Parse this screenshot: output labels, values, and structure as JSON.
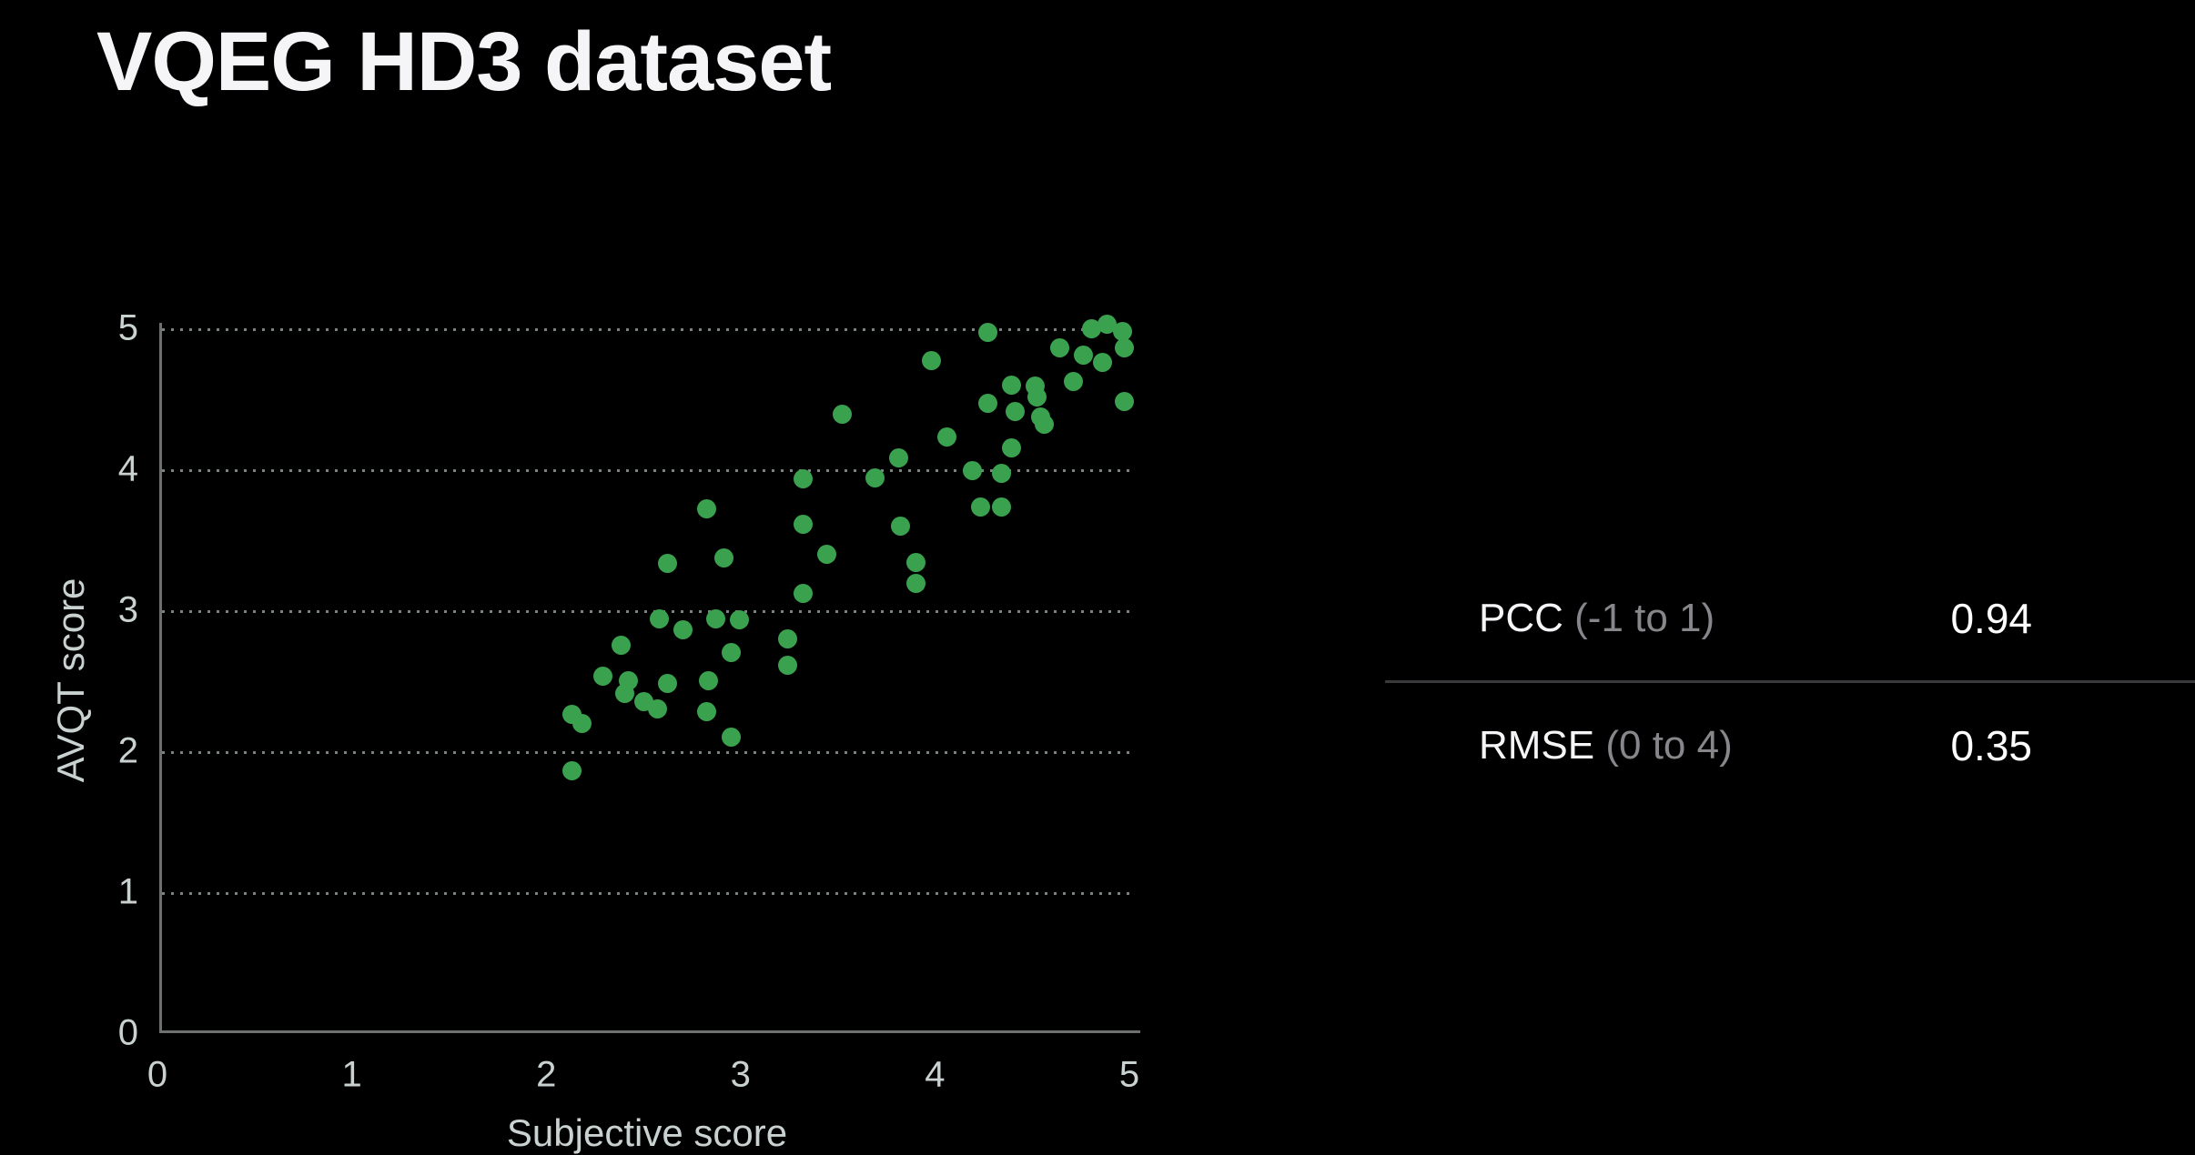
{
  "slide": {
    "title": "VQEG HD3 dataset"
  },
  "chart_data": {
    "type": "scatter",
    "title": "VQEG HD3 dataset",
    "xlabel": "Subjective score",
    "ylabel": "AVQT score",
    "xlim": [
      0,
      5
    ],
    "ylim": [
      0,
      5
    ],
    "x_ticks": [
      "0",
      "1",
      "2",
      "3",
      "4",
      "5"
    ],
    "y_ticks": [
      "0",
      "1",
      "2",
      "3",
      "4",
      "5"
    ],
    "grid": "horizontal dotted gridlines at y=1..5, legend off",
    "point_color": "#3aa24f",
    "series": [
      {
        "name": "AVQT score vs subjective score",
        "points": [
          [
            2.11,
            1.86
          ],
          [
            2.93,
            2.1
          ],
          [
            2.16,
            2.2
          ],
          [
            2.11,
            2.26
          ],
          [
            2.8,
            2.28
          ],
          [
            2.55,
            2.3
          ],
          [
            2.48,
            2.35
          ],
          [
            2.38,
            2.41
          ],
          [
            2.6,
            2.48
          ],
          [
            2.4,
            2.5
          ],
          [
            2.81,
            2.5
          ],
          [
            2.27,
            2.53
          ],
          [
            3.22,
            2.61
          ],
          [
            2.93,
            2.7
          ],
          [
            2.36,
            2.75
          ],
          [
            3.22,
            2.8
          ],
          [
            2.68,
            2.86
          ],
          [
            2.97,
            2.93
          ],
          [
            2.85,
            2.94
          ],
          [
            2.56,
            2.94
          ],
          [
            3.3,
            3.12
          ],
          [
            3.88,
            3.19
          ],
          [
            2.6,
            3.33
          ],
          [
            3.88,
            3.34
          ],
          [
            2.89,
            3.37
          ],
          [
            3.42,
            3.4
          ],
          [
            3.3,
            3.61
          ],
          [
            3.8,
            3.6
          ],
          [
            2.8,
            3.72
          ],
          [
            4.21,
            3.73
          ],
          [
            4.32,
            3.73
          ],
          [
            3.3,
            3.93
          ],
          [
            3.67,
            3.94
          ],
          [
            4.32,
            3.97
          ],
          [
            4.17,
            3.99
          ],
          [
            3.79,
            4.08
          ],
          [
            4.37,
            4.15
          ],
          [
            4.04,
            4.23
          ],
          [
            4.54,
            4.32
          ],
          [
            4.52,
            4.37
          ],
          [
            3.5,
            4.39
          ],
          [
            4.39,
            4.41
          ],
          [
            4.25,
            4.47
          ],
          [
            4.95,
            4.48
          ],
          [
            4.5,
            4.51
          ],
          [
            4.49,
            4.59
          ],
          [
            4.37,
            4.6
          ],
          [
            4.69,
            4.62
          ],
          [
            4.84,
            4.76
          ],
          [
            3.96,
            4.77
          ],
          [
            4.74,
            4.81
          ],
          [
            4.62,
            4.86
          ],
          [
            4.95,
            4.86
          ],
          [
            4.78,
            5.0
          ],
          [
            4.25,
            4.97
          ],
          [
            4.94,
            4.98
          ],
          [
            4.86,
            5.03
          ]
        ]
      }
    ]
  },
  "metrics": {
    "rows": [
      {
        "metric": "PCC",
        "range": "(-1 to 1)",
        "value": "0.94"
      },
      {
        "metric": "RMSE",
        "range": "(0 to 4)",
        "value": "0.35"
      }
    ]
  },
  "colors": {
    "background": "#000000",
    "title_text": "#f5f5f7",
    "axis_text": "#c9d1d1",
    "axis_line": "#6e7070",
    "point_green": "#3aa24f",
    "range_gray": "#86868b",
    "divider_gray": "#3a3a3c"
  }
}
